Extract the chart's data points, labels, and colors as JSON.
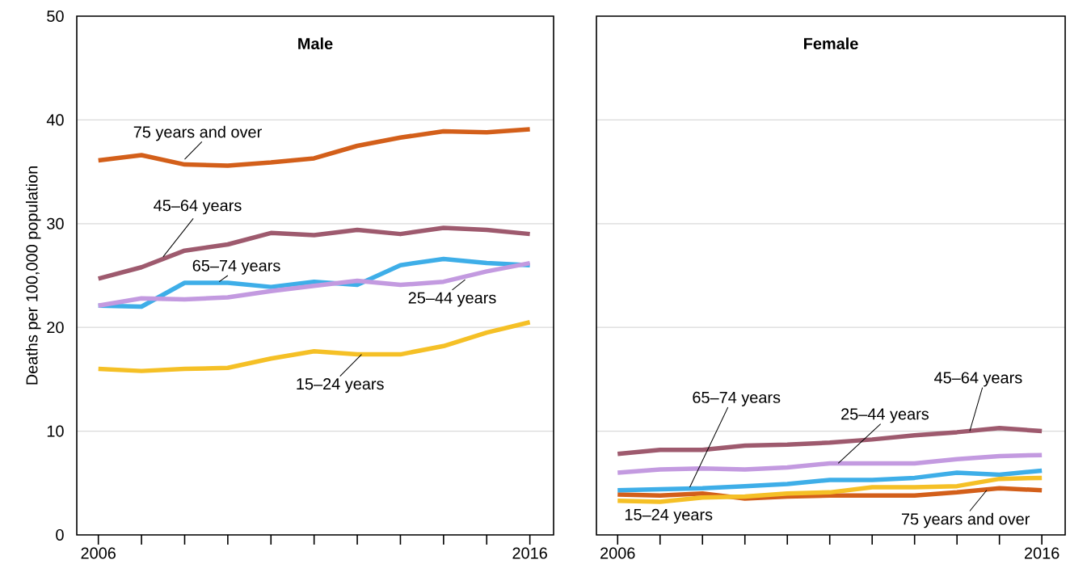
{
  "chart_data": [
    {
      "type": "line",
      "title": "Male",
      "ylabel": "Deaths per 100,000 population",
      "x": [
        2006,
        2007,
        2008,
        2009,
        2010,
        2011,
        2012,
        2013,
        2014,
        2015,
        2016
      ],
      "xlim": [
        2005.5,
        2016.55
      ],
      "xticks": [
        2006,
        {
          "value": 2007,
          "label": null
        },
        {
          "value": 2008,
          "label": null
        },
        {
          "value": 2009,
          "label": null
        },
        {
          "value": 2010,
          "label": null
        },
        {
          "value": 2011,
          "label": null
        },
        {
          "value": 2012,
          "label": null
        },
        {
          "value": 2013,
          "label": null
        },
        {
          "value": 2014,
          "label": null
        },
        {
          "value": 2015,
          "label": null
        },
        2016
      ],
      "ylim": [
        0,
        50
      ],
      "yticks": [
        0,
        10,
        20,
        30,
        40,
        50
      ],
      "grid": "y",
      "series": [
        {
          "name": "75 years and over",
          "color": "#d35f1a",
          "values": [
            36.1,
            36.6,
            35.7,
            35.6,
            35.9,
            36.3,
            37.5,
            38.3,
            38.9,
            38.8,
            39.1
          ]
        },
        {
          "name": "45–64 years",
          "color": "#9e5a6e",
          "values": [
            24.7,
            25.8,
            27.4,
            28.0,
            29.1,
            28.9,
            29.4,
            29.0,
            29.6,
            29.4,
            29.0
          ]
        },
        {
          "name": "65–74 years",
          "color": "#3eaee8",
          "values": [
            22.1,
            22.0,
            24.3,
            24.3,
            23.9,
            24.4,
            24.1,
            26.0,
            26.6,
            26.2,
            26.0
          ]
        },
        {
          "name": "25–44 years",
          "color": "#c39ae0",
          "values": [
            22.1,
            22.8,
            22.7,
            22.9,
            23.5,
            24.0,
            24.5,
            24.1,
            24.4,
            25.4,
            26.2
          ]
        },
        {
          "name": "15–24 years",
          "color": "#f5c026",
          "values": [
            16.0,
            15.8,
            16.0,
            16.1,
            17.0,
            17.7,
            17.4,
            17.4,
            18.2,
            19.5,
            20.5
          ]
        }
      ]
    },
    {
      "type": "line",
      "title": "Female",
      "x": [
        2006,
        2007,
        2008,
        2009,
        2010,
        2011,
        2012,
        2013,
        2014,
        2015,
        2016
      ],
      "xlim": [
        2005.5,
        2016.55
      ],
      "xticks": [
        2006,
        {
          "value": 2007,
          "label": null
        },
        {
          "value": 2008,
          "label": null
        },
        {
          "value": 2009,
          "label": null
        },
        {
          "value": 2010,
          "label": null
        },
        {
          "value": 2011,
          "label": null
        },
        {
          "value": 2012,
          "label": null
        },
        {
          "value": 2013,
          "label": null
        },
        {
          "value": 2014,
          "label": null
        },
        {
          "value": 2015,
          "label": null
        },
        2016
      ],
      "ylim": [
        0,
        50
      ],
      "yticks": [
        0,
        10,
        20,
        30,
        40,
        50
      ],
      "grid": "y",
      "tick_labels": "x",
      "series": [
        {
          "name": "75 years and over",
          "color": "#d35f1a",
          "values": [
            3.9,
            3.8,
            4.0,
            3.5,
            3.7,
            3.8,
            3.8,
            3.8,
            4.1,
            4.5,
            4.3
          ]
        },
        {
          "name": "45–64 years",
          "color": "#9e5a6e",
          "values": [
            7.8,
            8.2,
            8.2,
            8.6,
            8.7,
            8.9,
            9.2,
            9.6,
            9.9,
            10.3,
            10.0
          ]
        },
        {
          "name": "65–74 years",
          "color": "#3eaee8",
          "values": [
            4.3,
            4.4,
            4.5,
            4.7,
            4.9,
            5.3,
            5.3,
            5.5,
            6.0,
            5.8,
            6.2
          ]
        },
        {
          "name": "25–44 years",
          "color": "#c39ae0",
          "values": [
            6.0,
            6.3,
            6.4,
            6.3,
            6.5,
            6.9,
            6.9,
            6.9,
            7.3,
            7.6,
            7.7
          ]
        },
        {
          "name": "15–24 years",
          "color": "#f5c026",
          "values": [
            3.3,
            3.2,
            3.6,
            3.7,
            4.0,
            4.1,
            4.6,
            4.6,
            4.7,
            5.4,
            5.5
          ]
        }
      ]
    }
  ]
}
